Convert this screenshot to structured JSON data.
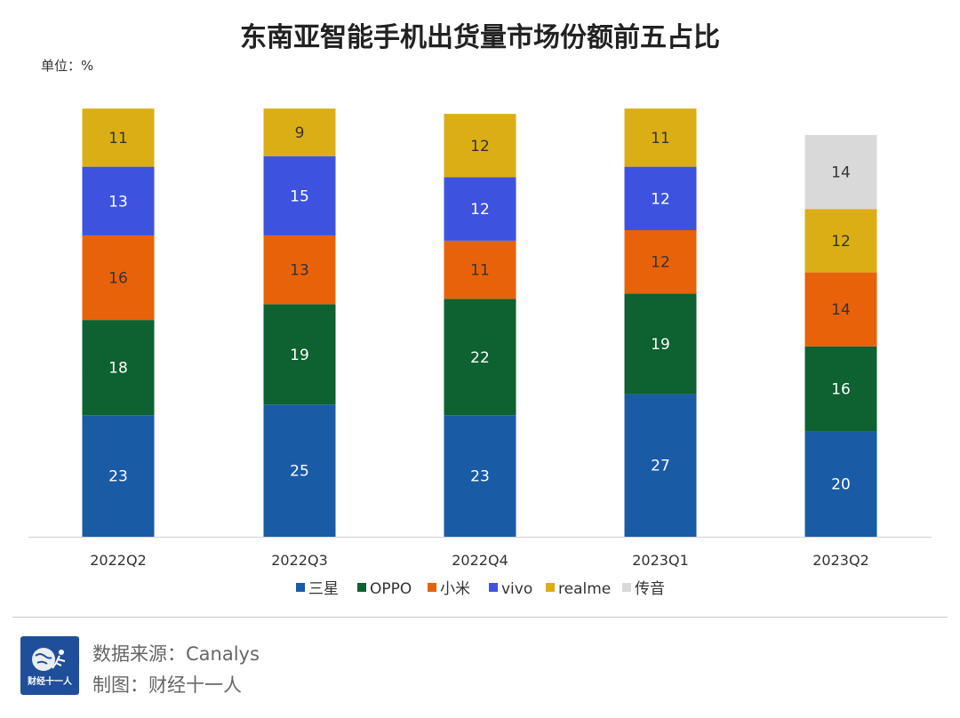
{
  "chart_data": {
    "type": "bar",
    "stacked": true,
    "title": "东南亚智能手机出货量市场份额前五占比",
    "unit_label": "单位：%",
    "categories": [
      "2022Q2",
      "2022Q3",
      "2022Q4",
      "2023Q1",
      "2023Q2"
    ],
    "series": [
      {
        "name": "三星",
        "color": "#1a5ba6",
        "label_color": "#ffffff",
        "values": [
          23,
          25,
          23,
          27,
          20
        ]
      },
      {
        "name": "OPPO",
        "color": "#0e6130",
        "label_color": "#ffffff",
        "values": [
          18,
          19,
          22,
          19,
          16
        ]
      },
      {
        "name": "小米",
        "color": "#e8620a",
        "label_color": "#333333",
        "values": [
          16,
          13,
          11,
          12,
          14
        ]
      },
      {
        "name": "vivo",
        "color": "#3d53e0",
        "label_color": "#ffffff",
        "values": [
          13,
          15,
          12,
          12,
          null
        ]
      },
      {
        "name": "realme",
        "color": "#dcae16",
        "label_color": "#333333",
        "values": [
          11,
          9,
          12,
          11,
          12
        ]
      },
      {
        "name": "传音",
        "color": "#d9d9d9",
        "label_color": "#333333",
        "values": [
          null,
          null,
          null,
          null,
          14
        ]
      }
    ],
    "ylim": [
      0,
      82
    ],
    "grid": false,
    "legend_position": "bottom"
  },
  "footer": {
    "source": "数据来源：Canalys",
    "credit": "制图：财经十一人",
    "logo_text": "财经十一人",
    "logo_icon": "globe-runner-icon"
  }
}
